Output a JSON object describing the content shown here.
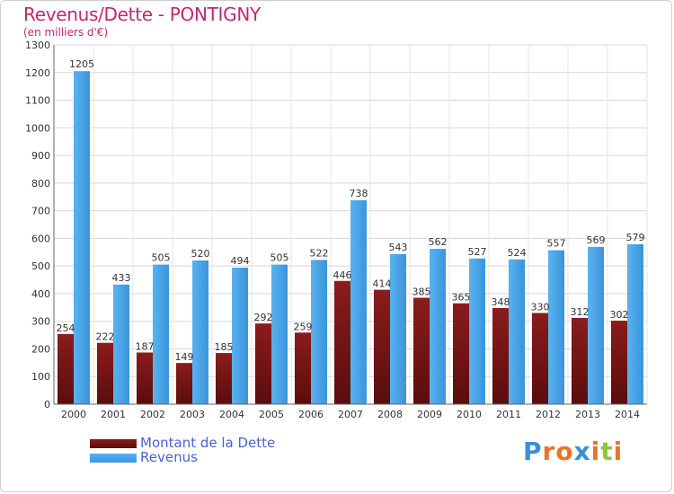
{
  "header": {
    "title": "Revenus/Dette - PONTIGNY",
    "subtitle": "(en milliers d'€)"
  },
  "colors": {
    "dette": "#7a1414",
    "revenus": "#45a4e8",
    "title": "#c0286e",
    "legend_text": "#4a63d6"
  },
  "legend": {
    "items": [
      {
        "label": "Montant de la Dette",
        "color": "#7a1414"
      },
      {
        "label": "Revenus",
        "color": "#45a4e8"
      }
    ]
  },
  "logo": {
    "text": "Proxiti",
    "letter_colors": [
      "#3a8fd8",
      "#e8742a",
      "#e8742a",
      "#3a8fd8",
      "#e8742a",
      "#8cc63f",
      "#e8742a"
    ]
  },
  "chart_data": {
    "type": "bar",
    "title": "Revenus/Dette - PONTIGNY",
    "subtitle": "(en milliers d'€)",
    "categories": [
      "2000",
      "2001",
      "2002",
      "2003",
      "2004",
      "2005",
      "2006",
      "2007",
      "2008",
      "2009",
      "2010",
      "2011",
      "2012",
      "2013",
      "2014"
    ],
    "series": [
      {
        "name": "Montant de la Dette",
        "values": [
          254,
          222,
          187,
          149,
          185,
          292,
          259,
          446,
          414,
          385,
          365,
          348,
          330,
          312,
          302
        ],
        "labels": [
          "254",
          "222",
          "187",
          "149",
          "185",
          "292",
          "259",
          "446",
          "414",
          "385",
          "365",
          "348",
          "330",
          "312",
          "302"
        ]
      },
      {
        "name": "Revenus",
        "values": [
          1205,
          433,
          505,
          520,
          494,
          505,
          522,
          738,
          543,
          562,
          527,
          524,
          557,
          569,
          579
        ],
        "labels": [
          "1205",
          "433",
          "505",
          "520",
          "494",
          "505",
          "522",
          "738",
          "543",
          "562",
          "527",
          "524",
          "557",
          "569",
          "579"
        ]
      }
    ],
    "ylim": [
      0,
      1300
    ],
    "yticks": [
      0,
      100,
      200,
      300,
      400,
      500,
      600,
      700,
      800,
      900,
      1000,
      1100,
      1200,
      1300
    ],
    "grid": true,
    "legend_position": "bottom-left"
  }
}
